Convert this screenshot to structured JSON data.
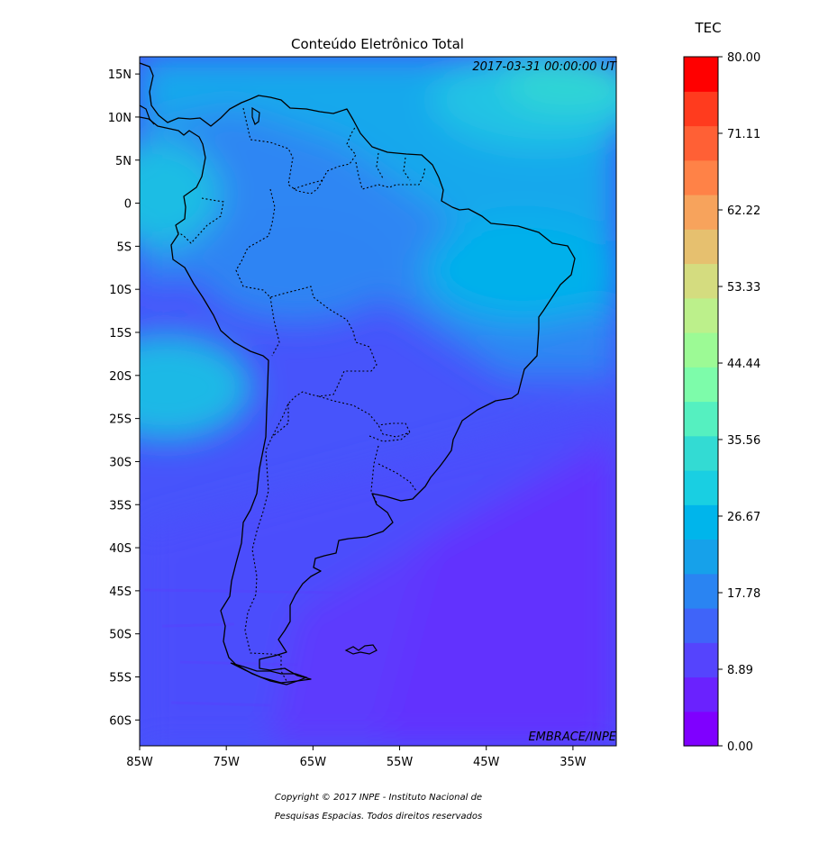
{
  "map": {
    "title": "Conteúdo Eletrônico Total",
    "timestamp": "2017-03-31 00:00:00 UT",
    "credit": "EMBRACE/INPE",
    "lon_range": [
      -85,
      -30
    ],
    "lat_range": [
      -63,
      17
    ],
    "lat_ticks": [
      {
        "value": 15,
        "label": "15N"
      },
      {
        "value": 10,
        "label": "10N"
      },
      {
        "value": 5,
        "label": "5N"
      },
      {
        "value": 0,
        "label": "0"
      },
      {
        "value": -5,
        "label": "5S"
      },
      {
        "value": -10,
        "label": "10S"
      },
      {
        "value": -15,
        "label": "15S"
      },
      {
        "value": -20,
        "label": "20S"
      },
      {
        "value": -25,
        "label": "25S"
      },
      {
        "value": -30,
        "label": "30S"
      },
      {
        "value": -35,
        "label": "35S"
      },
      {
        "value": -40,
        "label": "40S"
      },
      {
        "value": -45,
        "label": "45S"
      },
      {
        "value": -50,
        "label": "50S"
      },
      {
        "value": -55,
        "label": "55S"
      },
      {
        "value": -60,
        "label": "60S"
      }
    ],
    "lon_ticks": [
      {
        "value": -85,
        "label": "85W"
      },
      {
        "value": -75,
        "label": "75W"
      },
      {
        "value": -65,
        "label": "65W"
      },
      {
        "value": -55,
        "label": "55W"
      },
      {
        "value": -45,
        "label": "45W"
      },
      {
        "value": -35,
        "label": "35W"
      }
    ]
  },
  "colorbar": {
    "label": "TEC",
    "min": 0,
    "max": 80,
    "ticks": [
      "80.00",
      "71.11",
      "62.22",
      "53.33",
      "44.44",
      "35.56",
      "26.67",
      "17.78",
      "8.89",
      "0.00"
    ],
    "colors": [
      "#7f00ff",
      "#6a22fe",
      "#5544fd",
      "#3f64f9",
      "#2a84f2",
      "#16a1ea",
      "#00b5eb",
      "#19cfe2",
      "#33dbd3",
      "#55f0c0",
      "#7dfcaa",
      "#9cfa95",
      "#bcf08b",
      "#d4dc7f",
      "#e6c06f",
      "#f7a35c",
      "#ff8247",
      "#ff6035",
      "#ff3b1e",
      "#ff0000"
    ]
  },
  "copyright": {
    "line1": "Copyright © 2017 INPE - Instituto Nacional de",
    "line2": "Pesquisas Espacias. Todos direitos reservados"
  }
}
